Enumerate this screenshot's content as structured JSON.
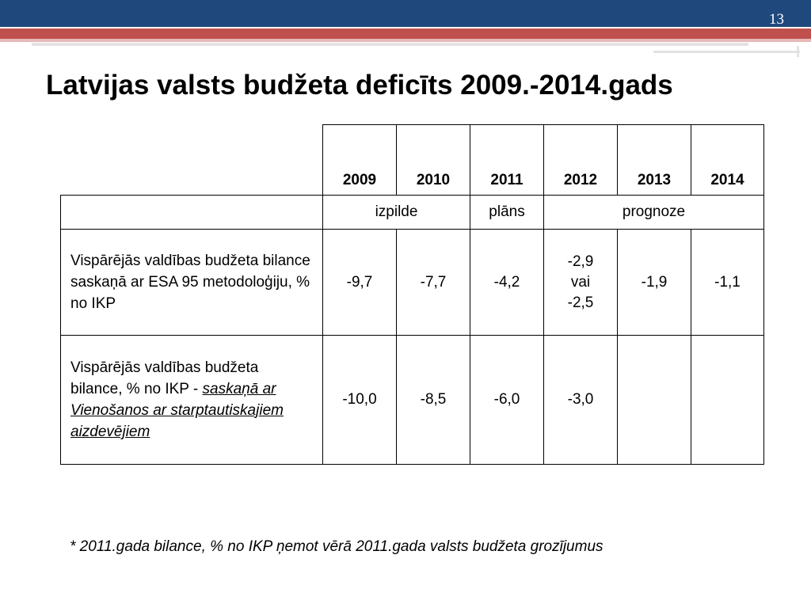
{
  "slide": {
    "number": "13",
    "title": "Latvijas valsts budžeta deficīts 2009.-2014.gads"
  },
  "table": {
    "years": [
      "2009",
      "2010",
      "2011",
      "2012",
      "2013",
      "2014"
    ],
    "status": {
      "izpilde": "izpilde",
      "plans": "plāns",
      "prognoze": "prognoze"
    },
    "rows": [
      {
        "label": "Vispārējās valdības budžeta bilance saskaņā ar ESA 95 metodoloģiju, % no IKP",
        "values": [
          "-9,7",
          "-7,7",
          "-4,2",
          "",
          "-1,9",
          "-1,1"
        ],
        "v2012_lines": [
          "-2,9",
          "vai",
          "-2,5"
        ]
      },
      {
        "label": "Vispārējās valdības budžeta bilance, % no IKP",
        "label_prefix": "- ",
        "label_note": "saskaņā ar Vienošanos ar starptautiskajiem aizdevējiem",
        "values": [
          "-10,0",
          "-8,5",
          "-6,0",
          "-3,0",
          "",
          ""
        ]
      }
    ]
  },
  "footnote": "* 2011.gada bilance, % no IKP ņemot vērā 2011.gada valsts budžeta grozījumus"
}
